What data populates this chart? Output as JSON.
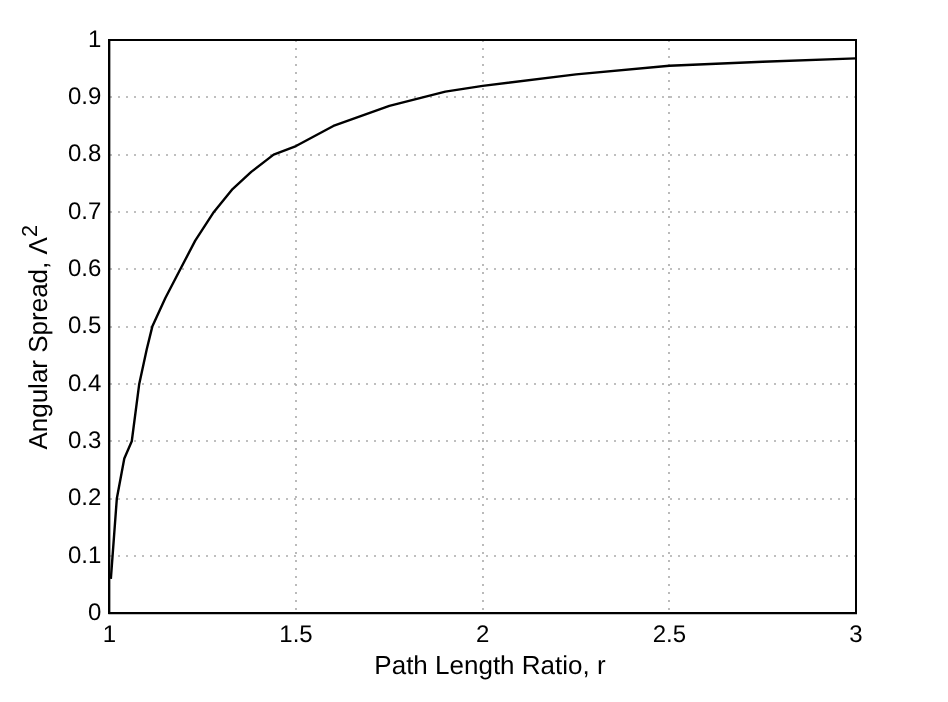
{
  "chart_data": {
    "type": "line",
    "xlabel": "Path Length Ratio,  r",
    "ylabel": "Angular Spread, Λ$^{2}$",
    "x": [
      1.004,
      1.02,
      1.04,
      1.06,
      1.08,
      1.1,
      1.115,
      1.15,
      1.19,
      1.23,
      1.28,
      1.33,
      1.38,
      1.44,
      1.5,
      1.6,
      1.75,
      1.9,
      2,
      2.25,
      2.5,
      2.75,
      3
    ],
    "series": [
      {
        "color": "#000000",
        "values": [
          0.06,
          0.2,
          0.27,
          0.3,
          0.4,
          0.46,
          0.5,
          0.55,
          0.6,
          0.65,
          0.7,
          0.74,
          0.77,
          0.8,
          0.815,
          0.85,
          0.885,
          0.91,
          0.92,
          0.94,
          0.955,
          0.962,
          0.968
        ]
      }
    ],
    "xlim": [
      1,
      3
    ],
    "xticks": [
      1,
      1.5,
      2,
      2.5,
      3
    ],
    "ylim": [
      0,
      1
    ],
    "yticks": [
      0,
      0.1,
      0.2,
      0.3,
      0.4,
      0.5,
      0.6,
      0.7,
      0.8,
      0.9,
      1
    ],
    "grid": true,
    "legend": false,
    "marker": "none",
    "line_style": "solid"
  }
}
